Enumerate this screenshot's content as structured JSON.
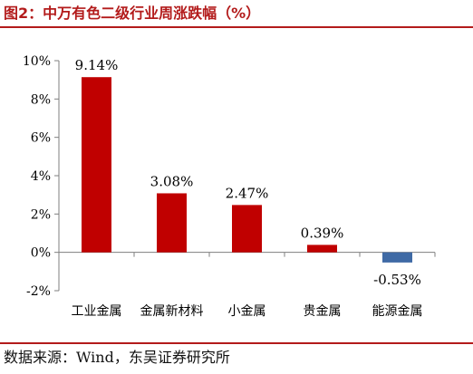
{
  "figure": {
    "title": "图2：中万有色二级行业周涨跌幅（%）",
    "source": "数据来源：Wind，东吴证券研究所"
  },
  "chart_data": {
    "type": "bar",
    "title": "",
    "xlabel": "",
    "ylabel": "",
    "categories": [
      "工业金属",
      "金属新材料",
      "小金属",
      "贵金属",
      "能源金属"
    ],
    "values": [
      9.14,
      3.08,
      2.47,
      0.39,
      -0.53
    ],
    "data_labels": [
      "9.14%",
      "3.08%",
      "2.47%",
      "0.39%",
      "-0.53%"
    ],
    "ylim": [
      -2,
      10
    ],
    "yticks": [
      -2,
      0,
      2,
      4,
      6,
      8,
      10
    ],
    "ytick_labels": [
      "-2%",
      "0%",
      "2%",
      "4%",
      "6%",
      "8%",
      "10%"
    ],
    "grid": false,
    "legend": "none",
    "colors": {
      "positive": "#c00000",
      "negative": "#3f6aa5",
      "axis": "#7f7f7f"
    }
  }
}
